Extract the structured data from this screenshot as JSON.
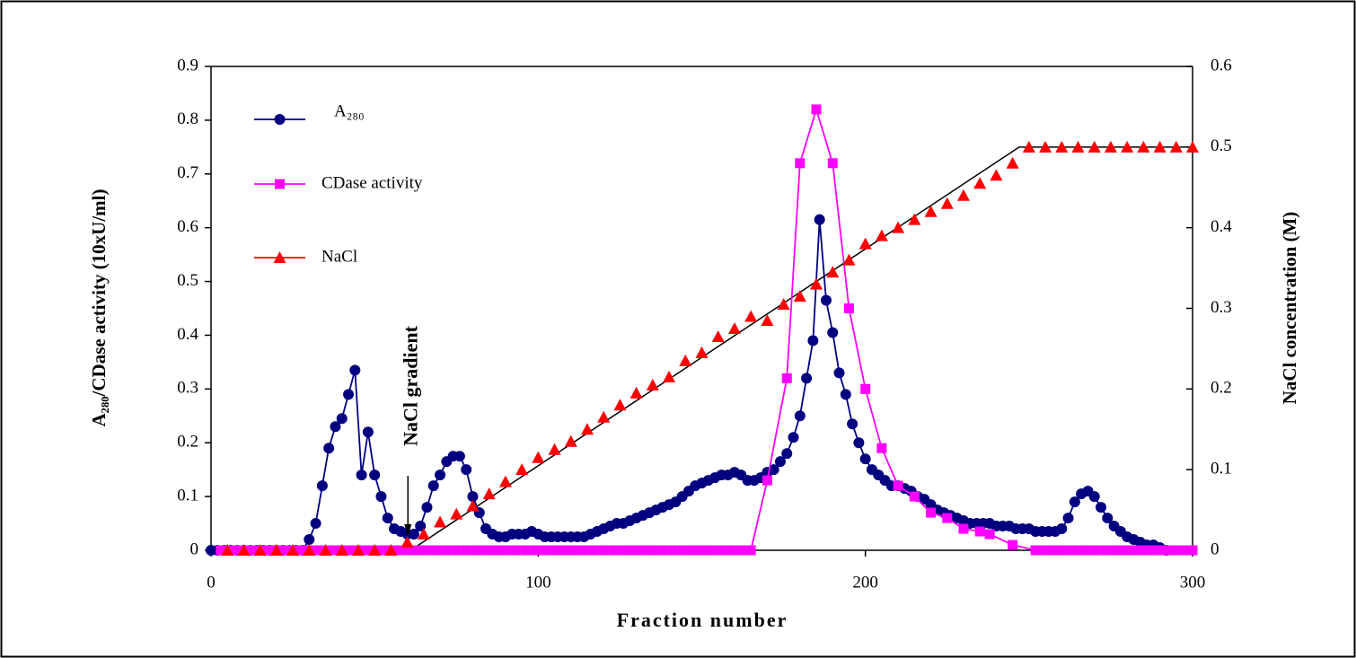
{
  "chart_data": {
    "type": "line",
    "xlabel": "Fraction number",
    "ylabel": "A₂₈₀/CDase activity (10xU/ml)",
    "y2label": "NaCl concentration (M)",
    "annotation": "NaCl gradient",
    "annotation_x": 61,
    "xlim": [
      0,
      300
    ],
    "xticks": [
      0,
      100,
      200,
      300
    ],
    "ylim": [
      0,
      0.9
    ],
    "yticks": [
      0,
      0.1,
      0.2,
      0.3,
      0.4,
      0.5,
      0.6,
      0.7,
      0.8,
      0.9
    ],
    "y2lim": [
      0,
      0.6
    ],
    "y2ticks": [
      0,
      0.1,
      0.2,
      0.3,
      0.4,
      0.5,
      0.6
    ],
    "series": [
      {
        "name": "A₂₈₀",
        "color": "#000080",
        "marker": "circle",
        "line": true,
        "x": [
          0,
          2,
          4,
          6,
          8,
          10,
          12,
          14,
          16,
          18,
          20,
          22,
          24,
          26,
          28,
          30,
          32,
          34,
          36,
          38,
          40,
          42,
          44,
          46,
          48,
          50,
          52,
          54,
          56,
          58,
          60,
          62,
          64,
          66,
          68,
          70,
          72,
          74,
          76,
          78,
          80,
          82,
          84,
          86,
          88,
          90,
          92,
          94,
          96,
          98,
          100,
          102,
          104,
          106,
          108,
          110,
          112,
          114,
          116,
          118,
          120,
          122,
          124,
          126,
          128,
          130,
          132,
          134,
          136,
          138,
          140,
          142,
          144,
          146,
          148,
          150,
          152,
          154,
          156,
          158,
          160,
          162,
          164,
          166,
          168,
          170,
          172,
          174,
          176,
          178,
          180,
          182,
          184,
          186,
          188,
          190,
          192,
          194,
          196,
          198,
          200,
          202,
          204,
          206,
          208,
          210,
          212,
          214,
          216,
          218,
          220,
          222,
          224,
          226,
          228,
          230,
          232,
          234,
          236,
          238,
          240,
          242,
          244,
          246,
          248,
          250,
          252,
          254,
          256,
          258,
          260,
          262,
          264,
          266,
          268,
          270,
          272,
          274,
          276,
          278,
          280,
          282,
          284,
          286,
          288,
          290,
          292
        ],
        "values": [
          0,
          0,
          0,
          0,
          0,
          0,
          0,
          0,
          0,
          0,
          0,
          0,
          0,
          0,
          0,
          0.02,
          0.05,
          0.12,
          0.19,
          0.23,
          0.245,
          0.29,
          0.335,
          0.14,
          0.22,
          0.14,
          0.1,
          0.06,
          0.04,
          0.035,
          0.03,
          0.03,
          0.045,
          0.08,
          0.12,
          0.14,
          0.165,
          0.175,
          0.175,
          0.15,
          0.1,
          0.07,
          0.04,
          0.03,
          0.025,
          0.025,
          0.03,
          0.03,
          0.03,
          0.035,
          0.03,
          0.025,
          0.025,
          0.025,
          0.025,
          0.025,
          0.025,
          0.025,
          0.03,
          0.035,
          0.04,
          0.045,
          0.05,
          0.05,
          0.055,
          0.06,
          0.065,
          0.07,
          0.075,
          0.08,
          0.085,
          0.09,
          0.1,
          0.11,
          0.12,
          0.125,
          0.13,
          0.135,
          0.14,
          0.14,
          0.145,
          0.14,
          0.13,
          0.13,
          0.135,
          0.145,
          0.15,
          0.165,
          0.18,
          0.21,
          0.25,
          0.32,
          0.39,
          0.615,
          0.465,
          0.405,
          0.33,
          0.29,
          0.235,
          0.2,
          0.17,
          0.15,
          0.14,
          0.13,
          0.12,
          0.12,
          0.115,
          0.11,
          0.1,
          0.095,
          0.085,
          0.075,
          0.07,
          0.065,
          0.06,
          0.055,
          0.05,
          0.05,
          0.05,
          0.05,
          0.045,
          0.045,
          0.045,
          0.04,
          0.04,
          0.04,
          0.035,
          0.035,
          0.035,
          0.035,
          0.04,
          0.06,
          0.09,
          0.105,
          0.11,
          0.1,
          0.08,
          0.06,
          0.045,
          0.035,
          0.025,
          0.02,
          0.015,
          0.01,
          0.01,
          0.005,
          0
        ]
      },
      {
        "name": "CDase activity",
        "color": "#ff00ff",
        "marker": "square",
        "line": true,
        "x": [
          3,
          6,
          9,
          12,
          15,
          18,
          21,
          24,
          27,
          30,
          33,
          36,
          39,
          42,
          45,
          48,
          51,
          54,
          57,
          60,
          63,
          66,
          69,
          72,
          75,
          78,
          81,
          84,
          87,
          90,
          93,
          96,
          99,
          102,
          105,
          108,
          111,
          114,
          117,
          120,
          123,
          126,
          129,
          132,
          135,
          138,
          141,
          144,
          147,
          150,
          153,
          156,
          159,
          162,
          165,
          170,
          176,
          180,
          185,
          190,
          195,
          200,
          205,
          210,
          215,
          220,
          225,
          230,
          235,
          238,
          245,
          252,
          255,
          258,
          261,
          264,
          267,
          270,
          273,
          276,
          279,
          282,
          285,
          288,
          291,
          294,
          297,
          300
        ],
        "values": [
          0,
          0,
          0,
          0,
          0,
          0,
          0,
          0,
          0,
          0,
          0,
          0,
          0,
          0,
          0,
          0,
          0,
          0,
          0,
          0,
          0,
          0,
          0,
          0,
          0,
          0,
          0,
          0,
          0,
          0,
          0,
          0,
          0,
          0,
          0,
          0,
          0,
          0,
          0,
          0,
          0,
          0,
          0,
          0,
          0,
          0,
          0,
          0,
          0,
          0,
          0,
          0,
          0,
          0,
          0,
          0.13,
          0.32,
          0.72,
          0.82,
          0.72,
          0.45,
          0.3,
          0.19,
          0.12,
          0.1,
          0.07,
          0.06,
          0.04,
          0.035,
          0.03,
          0.01,
          0,
          0,
          0,
          0,
          0,
          0,
          0,
          0,
          0,
          0,
          0,
          0,
          0,
          0,
          0,
          0,
          0
        ]
      },
      {
        "name": "NaCl",
        "color": "#ff0000",
        "marker": "triangle",
        "line": false,
        "axis": "y2",
        "x": [
          5,
          10,
          15,
          20,
          25,
          30,
          35,
          40,
          45,
          50,
          55,
          60,
          65,
          70,
          75,
          80,
          85,
          90,
          95,
          100,
          105,
          110,
          115,
          120,
          125,
          130,
          135,
          140,
          145,
          150,
          155,
          160,
          165,
          170,
          175,
          180,
          185,
          190,
          195,
          200,
          205,
          210,
          215,
          220,
          225,
          230,
          235,
          240,
          245,
          250,
          255,
          260,
          265,
          270,
          275,
          280,
          285,
          290,
          295,
          300
        ],
        "values": [
          0,
          0,
          0,
          0,
          0,
          0,
          0,
          0,
          0,
          0,
          0,
          0.01,
          0.02,
          0.035,
          0.045,
          0.055,
          0.07,
          0.085,
          0.1,
          0.115,
          0.125,
          0.135,
          0.15,
          0.165,
          0.18,
          0.195,
          0.205,
          0.215,
          0.235,
          0.245,
          0.265,
          0.275,
          0.29,
          0.285,
          0.305,
          0.315,
          0.33,
          0.345,
          0.36,
          0.38,
          0.39,
          0.4,
          0.41,
          0.42,
          0.43,
          0.44,
          0.455,
          0.465,
          0.48,
          0.5,
          0.5,
          0.5,
          0.5,
          0.5,
          0.5,
          0.5,
          0.5,
          0.5,
          0.5,
          0.5
        ]
      }
    ],
    "gradient_line": {
      "color": "#000000",
      "x": [
        61,
        247,
        300
      ],
      "values": [
        0,
        0.5,
        0.5
      ]
    }
  }
}
